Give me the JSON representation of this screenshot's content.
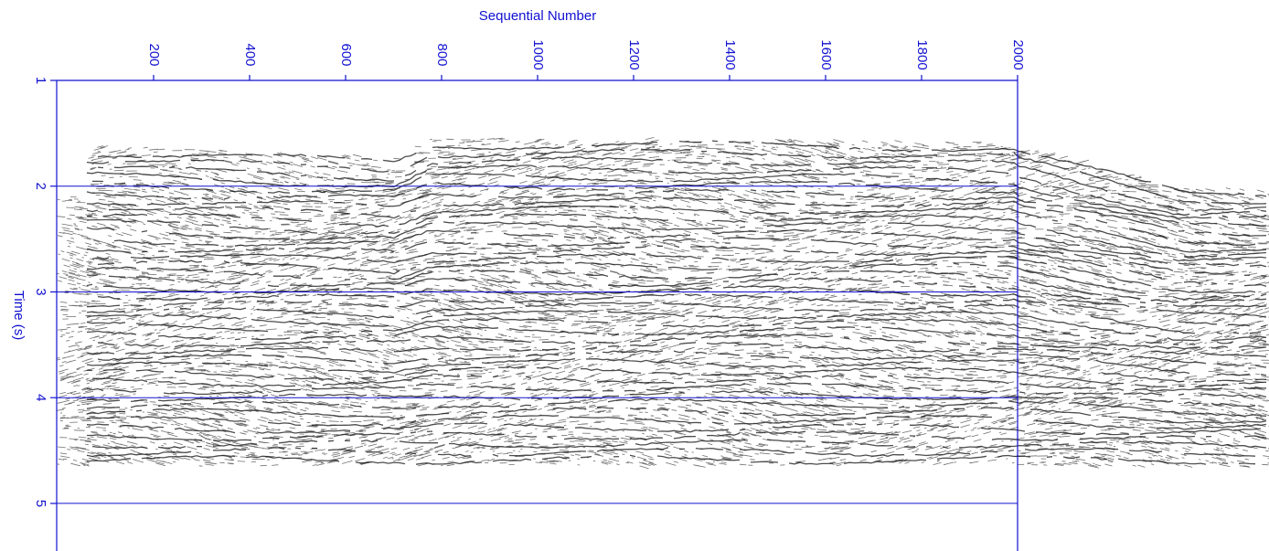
{
  "chart_data": {
    "type": "seismic",
    "title": "Sequential Number",
    "ylabel": "Time (s)",
    "xlim": [
      0,
      2000
    ],
    "xticks": [
      200,
      400,
      600,
      800,
      1000,
      1200,
      1400,
      1600,
      1800,
      2000
    ],
    "ylim": [
      1,
      5.45
    ],
    "yticks": [
      1,
      2,
      3,
      4,
      5
    ],
    "y_inverted": true,
    "grid": true,
    "color": "#1010d0"
  }
}
